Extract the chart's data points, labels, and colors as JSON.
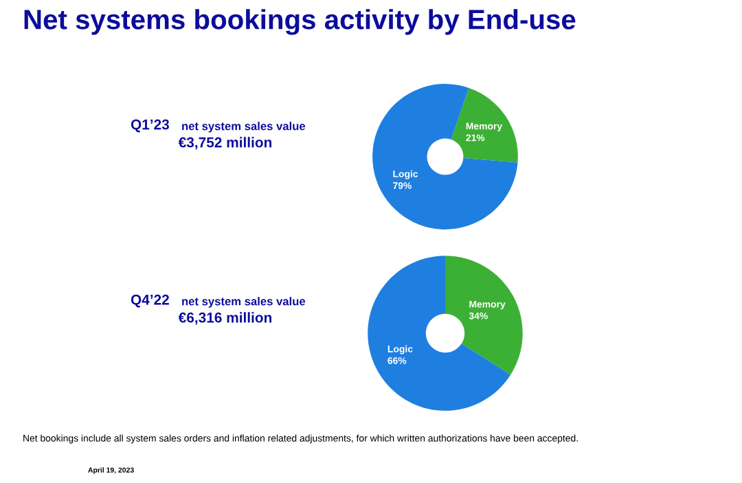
{
  "chart_data": [
    {
      "type": "donut",
      "title": "Net systems bookings activity by End-use",
      "categories": [
        "Memory",
        "Logic"
      ],
      "values": [
        21,
        79
      ],
      "value_labels": [
        "21%",
        "79%"
      ],
      "colors": [
        "#3cb034",
        "#1f7fe0"
      ],
      "legend": false,
      "annotations": [
        "Q1’23",
        "net system sales value",
        "€3,752 million"
      ]
    },
    {
      "type": "donut",
      "categories": [
        "Memory",
        "Logic"
      ],
      "values": [
        34,
        66
      ],
      "value_labels": [
        "34%",
        "66%"
      ],
      "colors": [
        "#3cb034",
        "#1f7fe0"
      ],
      "legend": false,
      "annotations": [
        "Q4’22",
        "net system sales value",
        "€6,316 million",
        "Net bookings include all system sales orders and inflation related adjustments, for which written authorizations have been accepted.",
        "April 19, 2023"
      ]
    }
  ]
}
